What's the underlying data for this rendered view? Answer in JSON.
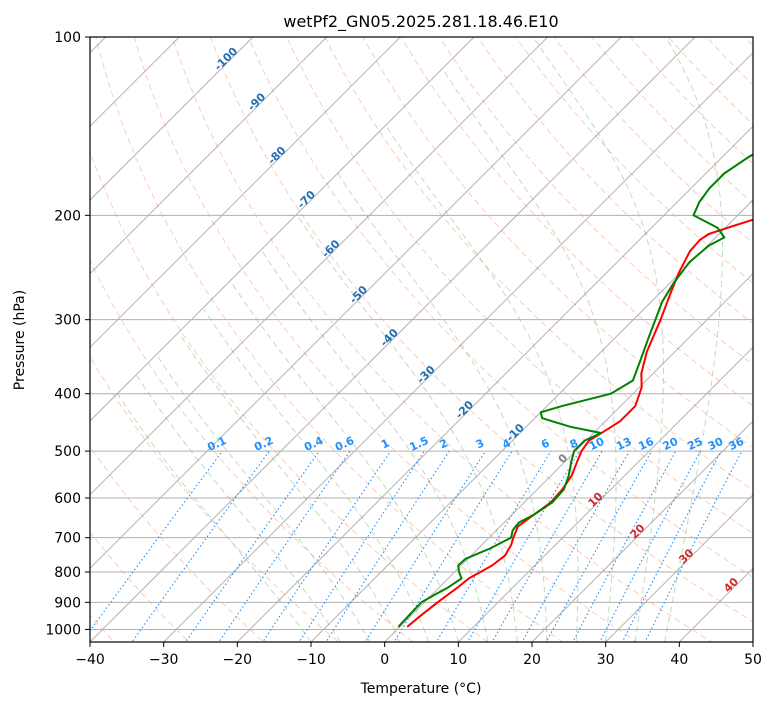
{
  "chart_data": {
    "type": "line",
    "title": "wetPf2_GN05.2025.281.18.46.E10",
    "xlabel": "Temperature (°C)",
    "ylabel": "Pressure (hPa)",
    "xlim": [
      -40,
      50
    ],
    "ylim": [
      1050,
      100
    ],
    "y_scale": "log",
    "grid": true,
    "x_ticks": [
      -40,
      -30,
      -20,
      -10,
      0,
      10,
      20,
      30,
      40,
      50
    ],
    "y_ticks": [
      100,
      200,
      300,
      400,
      500,
      600,
      700,
      800,
      900,
      1000
    ],
    "skew_slope": 1.0,
    "series": [
      {
        "color": "#ff0000",
        "data": [
          [
            990,
            1.0
          ],
          [
            950,
            1.3
          ],
          [
            900,
            1.8
          ],
          [
            850,
            2.5
          ],
          [
            820,
            2.8
          ],
          [
            800,
            3.5
          ],
          [
            780,
            4.2
          ],
          [
            750,
            4.6
          ],
          [
            720,
            4.0
          ],
          [
            700,
            3.3
          ],
          [
            670,
            2.4
          ],
          [
            640,
            3.0
          ],
          [
            610,
            3.6
          ],
          [
            580,
            3.4
          ],
          [
            550,
            2.8
          ],
          [
            520,
            1.6
          ],
          [
            500,
            0.8
          ],
          [
            480,
            0.4
          ],
          [
            463,
            1.2
          ],
          [
            445,
            2.0
          ],
          [
            420,
            2.0
          ],
          [
            390,
            0.3
          ],
          [
            370,
            -1.6
          ],
          [
            340,
            -3.8
          ],
          [
            300,
            -6.3
          ],
          [
            270,
            -8.6
          ],
          [
            250,
            -10.2
          ],
          [
            230,
            -11.6
          ],
          [
            220,
            -11.8
          ],
          [
            215,
            -11.4
          ],
          [
            208,
            -9.0
          ],
          [
            200,
            -6.0
          ],
          [
            190,
            -3.0
          ],
          [
            175,
            2.0
          ],
          [
            160,
            8.0
          ],
          [
            145,
            14.0
          ],
          [
            130,
            21.0
          ],
          [
            118,
            26.0
          ],
          [
            108,
            29.5
          ],
          [
            100,
            32.0
          ]
        ]
      },
      {
        "color": "#008000",
        "data": [
          [
            990,
            -0.2
          ],
          [
            950,
            -0.3
          ],
          [
            900,
            -0.4
          ],
          [
            870,
            0.5
          ],
          [
            850,
            1.2
          ],
          [
            820,
            1.8
          ],
          [
            800,
            0.6
          ],
          [
            780,
            -0.4
          ],
          [
            760,
            -0.3
          ],
          [
            730,
            1.6
          ],
          [
            700,
            3.0
          ],
          [
            680,
            2.2
          ],
          [
            660,
            2.0
          ],
          [
            640,
            3.0
          ],
          [
            610,
            3.8
          ],
          [
            580,
            3.6
          ],
          [
            550,
            2.4
          ],
          [
            520,
            0.8
          ],
          [
            500,
            -0.2
          ],
          [
            480,
            -0.2
          ],
          [
            466,
            1.0
          ],
          [
            455,
            -4.0
          ],
          [
            440,
            -9.0
          ],
          [
            430,
            -10.0
          ],
          [
            420,
            -8.0
          ],
          [
            400,
            -3.0
          ],
          [
            380,
            -1.8
          ],
          [
            350,
            -3.6
          ],
          [
            320,
            -5.6
          ],
          [
            300,
            -7.0
          ],
          [
            280,
            -8.5
          ],
          [
            260,
            -9.5
          ],
          [
            240,
            -10.2
          ],
          [
            225,
            -9.8
          ],
          [
            218,
            -8.8
          ],
          [
            210,
            -11.0
          ],
          [
            200,
            -16.0
          ],
          [
            190,
            -17.0
          ],
          [
            180,
            -17.5
          ],
          [
            170,
            -17.5
          ],
          [
            160,
            -16.5
          ],
          [
            150,
            -15.0
          ],
          [
            140,
            -12.5
          ],
          [
            130,
            -9.5
          ],
          [
            120,
            -6.0
          ],
          [
            112,
            -2.5
          ],
          [
            105,
            0.0
          ],
          [
            100,
            1.5
          ]
        ]
      }
    ],
    "mixing_ratio_labels": [
      "0.1",
      "0.2",
      "0.4",
      "0.6",
      "1",
      "1.5",
      "2",
      "3",
      "4",
      "6",
      "8",
      "10",
      "13",
      "16",
      "20",
      "25",
      "30",
      "36"
    ],
    "isotherm_labels": [
      "-100",
      "-90",
      "-80",
      "-70",
      "-60",
      "-50",
      "-40",
      "-30",
      "-20",
      "-10"
    ],
    "warm_isotherm_labels": [
      "0",
      "10",
      "20",
      "30",
      "40"
    ],
    "colors": {
      "temperature": "#ff0000",
      "dewpoint": "#008000",
      "dry_adiabat": "#ffa07a",
      "moist_adiabat": "#8fbc8f",
      "mixing_ratio": "#1e90ff",
      "isotherm": "#808080",
      "isotherm_label_cold": "#1f6fb4",
      "isotherm_label_warm": "#d62728",
      "isotherm_label_zero": "#808080"
    }
  }
}
